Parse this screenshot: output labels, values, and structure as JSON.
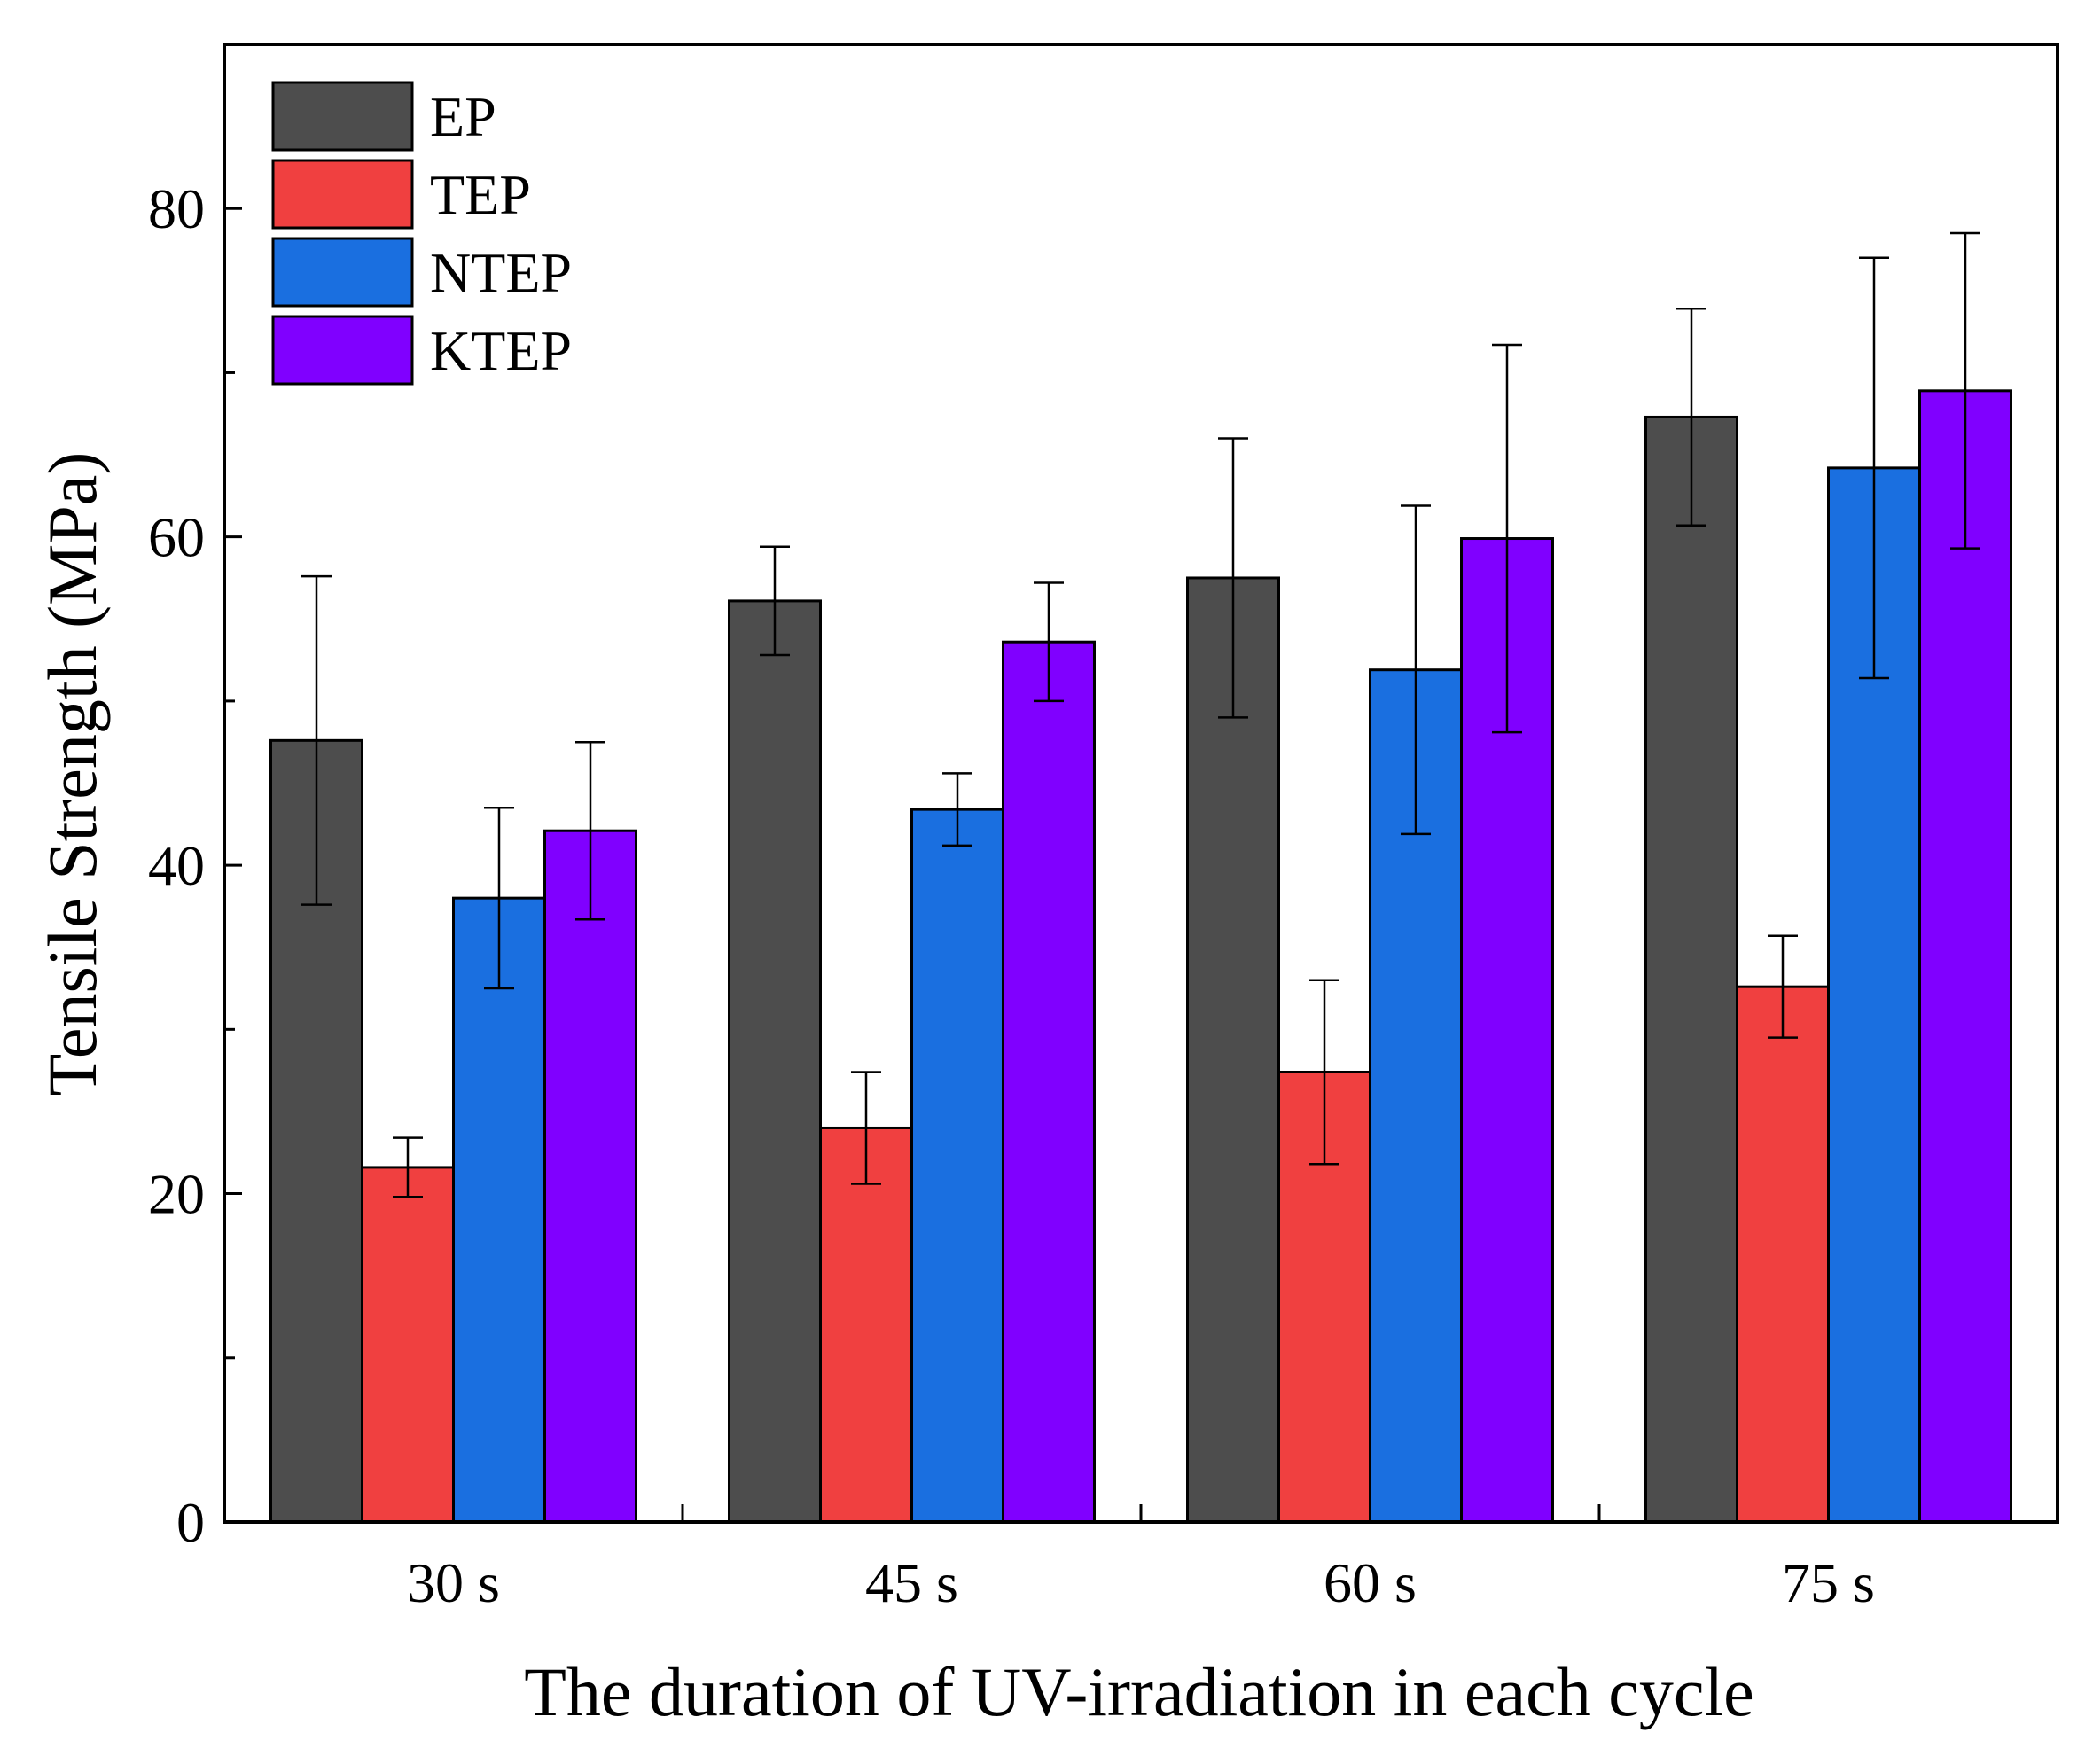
{
  "chart_data": {
    "type": "bar",
    "title": "",
    "xlabel": "The duration of UV-irradiation in each cycle",
    "ylabel": "Tensile Strength (MPa)",
    "ylim": [
      0,
      90
    ],
    "yticks": [
      0,
      20,
      40,
      60,
      80
    ],
    "yminor_ticks": [
      10,
      30,
      50,
      70
    ],
    "categories": [
      "30 s",
      "45 s",
      "60 s",
      "75 s"
    ],
    "legend_position": "top-left",
    "grid": false,
    "series": [
      {
        "name": "EP",
        "color": "#4d4d4d",
        "values": [
          47.6,
          56.1,
          57.5,
          67.3
        ],
        "errors": [
          10.0,
          3.3,
          8.5,
          6.6
        ]
      },
      {
        "name": "TEP",
        "color": "#f04040",
        "values": [
          21.6,
          24.0,
          27.4,
          32.6
        ],
        "errors": [
          1.8,
          3.4,
          5.6,
          3.1
        ]
      },
      {
        "name": "NTEP",
        "color": "#1a6fe0",
        "values": [
          38.0,
          43.4,
          51.9,
          64.2
        ],
        "errors": [
          5.5,
          2.2,
          10.0,
          12.8
        ]
      },
      {
        "name": "KTEP",
        "color": "#8000ff",
        "values": [
          42.1,
          53.6,
          59.9,
          68.9
        ],
        "errors": [
          5.4,
          3.6,
          11.8,
          9.6
        ]
      }
    ]
  }
}
